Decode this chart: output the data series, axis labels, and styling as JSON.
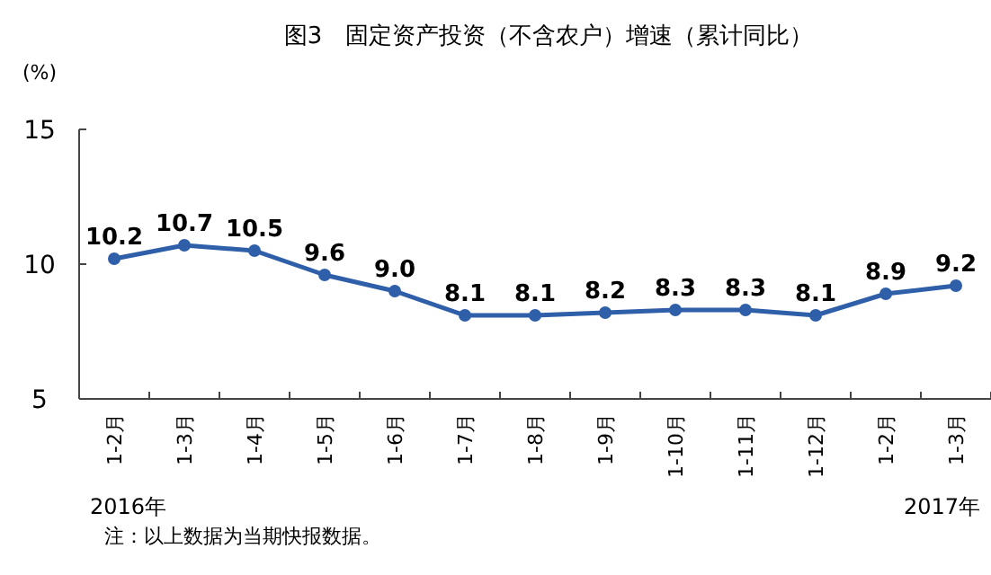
{
  "chart_data": {
    "type": "line",
    "title": "图3　固定资产投资（不含农户）增速（累计同比）",
    "ylabel": "(%)",
    "categories": [
      "1-2月",
      "1-3月",
      "1-4月",
      "1-5月",
      "1-6月",
      "1-7月",
      "1-8月",
      "1-9月",
      "1-10月",
      "1-11月",
      "1-12月",
      "1-2月",
      "1-3月"
    ],
    "series": [
      {
        "color": "#2f5fa8",
        "values": [
          10.2,
          10.7,
          10.5,
          9.6,
          9.0,
          8.1,
          8.1,
          8.2,
          8.3,
          8.3,
          8.1,
          8.9,
          9.2
        ],
        "value_labels": [
          "10.2",
          "10.7",
          "10.5",
          "9.6",
          "9.0",
          "8.1",
          "8.1",
          "8.2",
          "8.3",
          "8.3",
          "8.1",
          "8.9",
          "9.2"
        ]
      }
    ],
    "ylim": [
      5,
      15
    ],
    "yticks": [
      5,
      10,
      15
    ],
    "marker": "circle",
    "line_style": "solid",
    "grid": false,
    "annotations": [
      "2016年",
      "2017年",
      "注：以上数据为当期快报数据。"
    ]
  }
}
